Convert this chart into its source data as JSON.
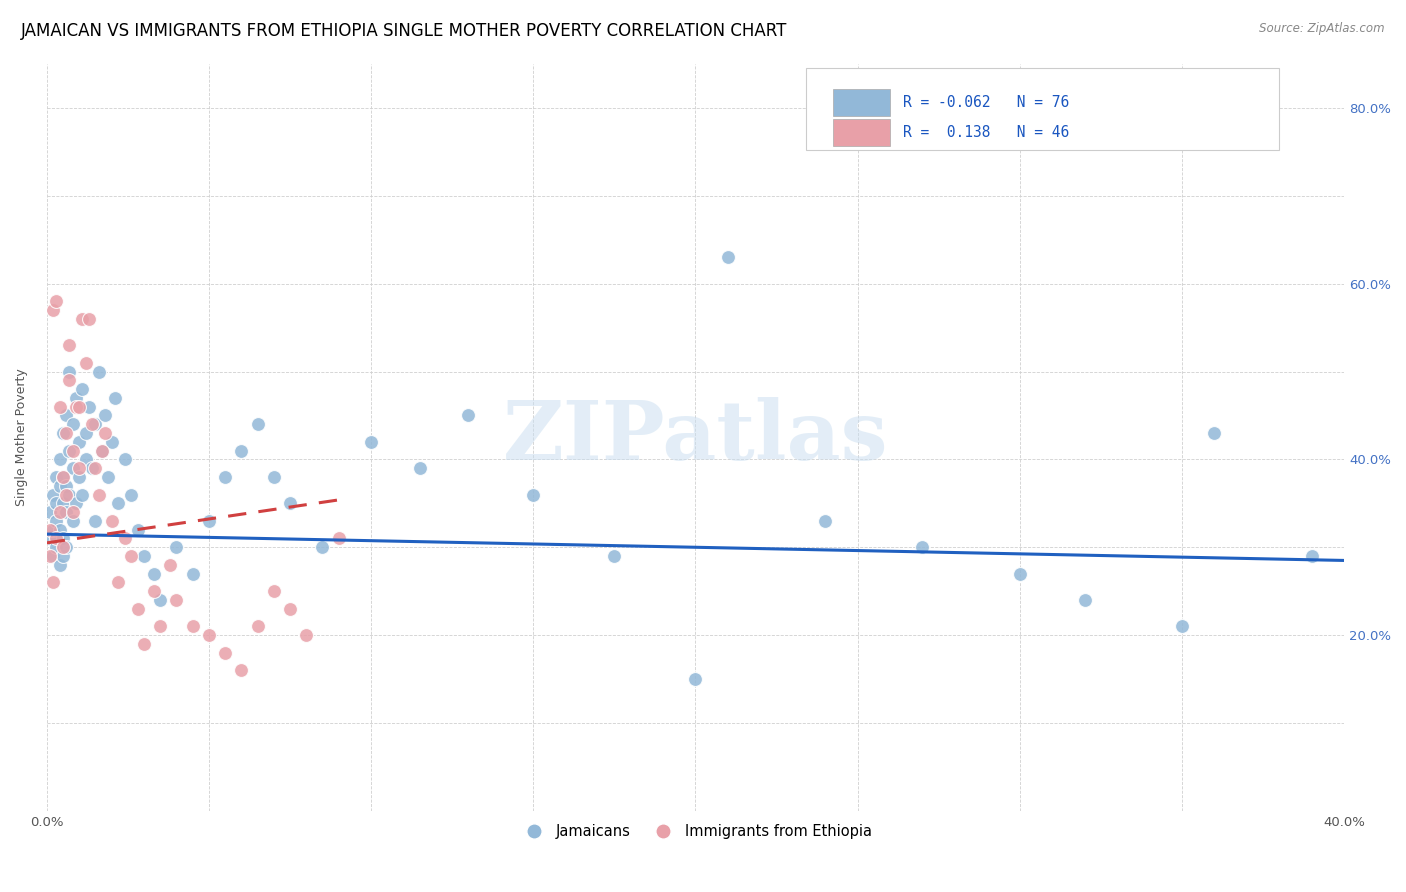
{
  "title": "JAMAICAN VS IMMIGRANTS FROM ETHIOPIA SINGLE MOTHER POVERTY CORRELATION CHART",
  "source": "Source: ZipAtlas.com",
  "ylabel": "Single Mother Poverty",
  "xlim": [
    0.0,
    0.4
  ],
  "ylim": [
    0.0,
    0.85
  ],
  "watermark": "ZIPatlas",
  "blue_color": "#92b8d8",
  "pink_color": "#e8a0a8",
  "blue_line_color": "#2060c0",
  "pink_line_color": "#d04040",
  "tick_color_right": "#4472c4",
  "title_fontsize": 12,
  "axis_label_fontsize": 9,
  "tick_fontsize": 9.5,
  "blue_scatter_x": [
    0.001,
    0.001,
    0.002,
    0.002,
    0.002,
    0.003,
    0.003,
    0.003,
    0.003,
    0.004,
    0.004,
    0.004,
    0.004,
    0.005,
    0.005,
    0.005,
    0.005,
    0.005,
    0.006,
    0.006,
    0.006,
    0.006,
    0.007,
    0.007,
    0.007,
    0.008,
    0.008,
    0.008,
    0.009,
    0.009,
    0.01,
    0.01,
    0.011,
    0.011,
    0.012,
    0.012,
    0.013,
    0.014,
    0.015,
    0.015,
    0.016,
    0.017,
    0.018,
    0.019,
    0.02,
    0.021,
    0.022,
    0.024,
    0.026,
    0.028,
    0.03,
    0.033,
    0.035,
    0.04,
    0.045,
    0.05,
    0.055,
    0.06,
    0.065,
    0.07,
    0.075,
    0.085,
    0.1,
    0.115,
    0.13,
    0.15,
    0.175,
    0.2,
    0.24,
    0.27,
    0.3,
    0.32,
    0.35,
    0.36,
    0.39,
    0.21
  ],
  "blue_scatter_y": [
    0.31,
    0.34,
    0.29,
    0.32,
    0.36,
    0.3,
    0.33,
    0.38,
    0.35,
    0.28,
    0.32,
    0.37,
    0.4,
    0.31,
    0.35,
    0.29,
    0.43,
    0.38,
    0.34,
    0.3,
    0.45,
    0.37,
    0.5,
    0.36,
    0.41,
    0.44,
    0.39,
    0.33,
    0.47,
    0.35,
    0.42,
    0.38,
    0.48,
    0.36,
    0.43,
    0.4,
    0.46,
    0.39,
    0.44,
    0.33,
    0.5,
    0.41,
    0.45,
    0.38,
    0.42,
    0.47,
    0.35,
    0.4,
    0.36,
    0.32,
    0.29,
    0.27,
    0.24,
    0.3,
    0.27,
    0.33,
    0.38,
    0.41,
    0.44,
    0.38,
    0.35,
    0.3,
    0.42,
    0.39,
    0.45,
    0.36,
    0.29,
    0.15,
    0.33,
    0.3,
    0.27,
    0.24,
    0.21,
    0.43,
    0.29,
    0.63
  ],
  "pink_scatter_x": [
    0.001,
    0.001,
    0.002,
    0.002,
    0.003,
    0.003,
    0.004,
    0.004,
    0.005,
    0.005,
    0.006,
    0.006,
    0.007,
    0.007,
    0.008,
    0.008,
    0.009,
    0.01,
    0.011,
    0.012,
    0.013,
    0.014,
    0.015,
    0.016,
    0.017,
    0.018,
    0.02,
    0.022,
    0.024,
    0.026,
    0.028,
    0.03,
    0.033,
    0.035,
    0.038,
    0.04,
    0.045,
    0.05,
    0.055,
    0.06,
    0.065,
    0.07,
    0.075,
    0.08,
    0.09,
    0.01
  ],
  "pink_scatter_y": [
    0.29,
    0.32,
    0.26,
    0.57,
    0.31,
    0.58,
    0.34,
    0.46,
    0.38,
    0.3,
    0.43,
    0.36,
    0.49,
    0.53,
    0.41,
    0.34,
    0.46,
    0.39,
    0.56,
    0.51,
    0.56,
    0.44,
    0.39,
    0.36,
    0.41,
    0.43,
    0.33,
    0.26,
    0.31,
    0.29,
    0.23,
    0.19,
    0.25,
    0.21,
    0.28,
    0.24,
    0.21,
    0.2,
    0.18,
    0.16,
    0.21,
    0.25,
    0.23,
    0.2,
    0.31,
    0.46
  ],
  "blue_trend_x": [
    0.0,
    0.4
  ],
  "blue_trend_y": [
    0.315,
    0.285
  ],
  "pink_trend_x": [
    0.0,
    0.092
  ],
  "pink_trend_y": [
    0.305,
    0.355
  ],
  "legend_text_1": "R = -0.062   N = 76",
  "legend_text_2": "R =  0.138   N = 46"
}
